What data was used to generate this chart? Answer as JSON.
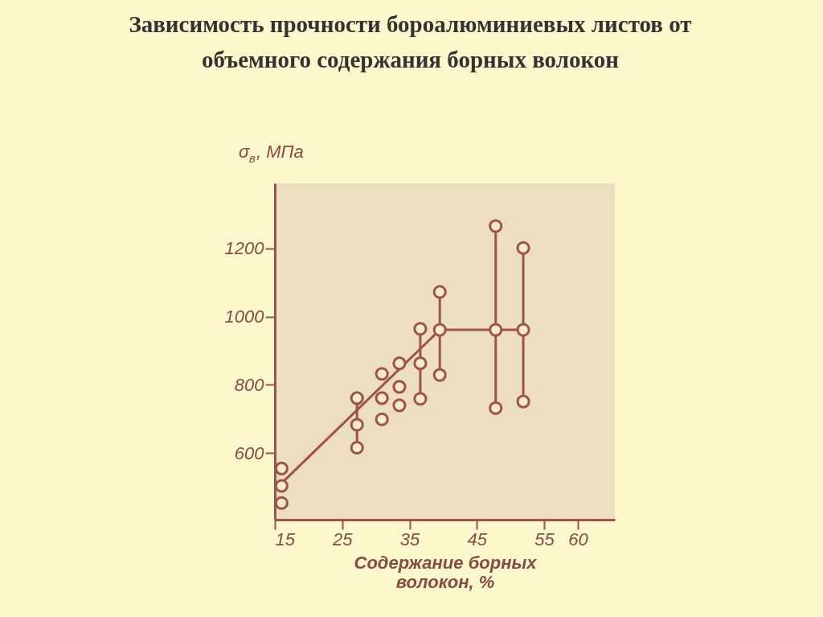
{
  "chart_data": {
    "type": "scatter",
    "title": [
      "Зависимость прочности бороалюминиевых листов от",
      "объемного содержания борных волокон"
    ],
    "xlabel": [
      "Содержание борных",
      "волокон, %"
    ],
    "ylabel": "σ$_{в}$, МПа",
    "xlim": [
      15,
      65.5
    ],
    "xticks": [
      15,
      25,
      35,
      45,
      55,
      60
    ],
    "ylim": [
      405,
      1390
    ],
    "yticks": [
      600,
      800,
      1000,
      1200
    ],
    "grid": false,
    "series": [
      {
        "color": "#a0524a",
        "marker": "circle",
        "x": [
          16.0,
          16.0,
          16.0,
          27.2,
          27.2,
          27.2,
          30.9,
          30.9,
          30.9,
          33.5,
          33.5,
          33.5,
          36.6,
          36.6,
          36.6,
          39.5,
          39.5,
          39.5,
          47.8,
          47.8,
          47.8,
          51.9,
          51.9,
          51.9
        ],
        "values": [
          555,
          504,
          454,
          761,
          683,
          616,
          832,
          761,
          699,
          863,
          794,
          740,
          964,
          863,
          759,
          1072,
          961,
          829,
          1265,
          961,
          732,
          1201,
          961,
          751
        ]
      },
      {
        "type": "line",
        "color": "#a0524a",
        "line_style": "solid",
        "x": [
          27.2,
          27.2
        ],
        "values": [
          616,
          761
        ]
      },
      {
        "type": "line",
        "color": "#a0524a",
        "line_style": "solid",
        "x": [
          36.6,
          36.6
        ],
        "values": [
          759,
          964
        ]
      },
      {
        "type": "line",
        "color": "#a0524a",
        "line_style": "solid",
        "x": [
          39.5,
          39.5
        ],
        "values": [
          829,
          1072
        ]
      },
      {
        "type": "line",
        "color": "#a0524a",
        "line_style": "solid",
        "x": [
          47.8,
          47.8
        ],
        "values": [
          732,
          1265
        ]
      },
      {
        "type": "line",
        "color": "#a0524a",
        "line_style": "solid",
        "x": [
          51.9,
          51.9
        ],
        "values": [
          751,
          1201
        ]
      },
      {
        "type": "line",
        "color": "#a0524a",
        "line_style": "solid",
        "x": [
          16.0,
          39.5,
          51.9
        ],
        "values": [
          512,
          961,
          961
        ]
      }
    ]
  }
}
